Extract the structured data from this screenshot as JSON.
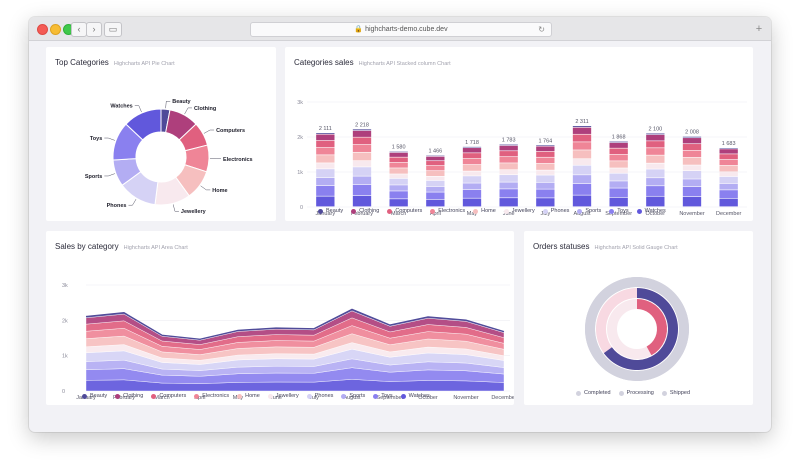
{
  "browser": {
    "url": "highcharts-demo.cube.dev"
  },
  "colors": [
    "#4f4a99",
    "#ae3f7c",
    "#e0607f",
    "#ef8597",
    "#f6bfbf",
    "#f8e9ee",
    "#d5d2f5",
    "#b3adf3",
    "#8a80ef",
    "#6158dc"
  ],
  "cards": {
    "pie": {
      "title": "Top Categories",
      "subtitle": "Highcharts API Pie Chart"
    },
    "column": {
      "title": "Categories sales",
      "subtitle": "Highcharts API Stacked column Chart"
    },
    "area": {
      "title": "Sales by category",
      "subtitle": "Highcharts API Area Chart"
    },
    "gauge": {
      "title": "Orders statuses",
      "subtitle": "Highcharts API Solid Gauge Chart"
    }
  },
  "chart_data": [
    {
      "type": "pie",
      "title": "Top Categories",
      "categories": [
        "Beauty",
        "Clothing",
        "Computers",
        "Electronics",
        "Home",
        "Jewellery",
        "Phones",
        "Sports",
        "Toys",
        "Watches"
      ],
      "values": [
        3,
        10,
        8,
        9,
        10,
        12,
        13,
        9,
        13,
        13
      ],
      "donut": true
    },
    {
      "type": "bar",
      "stacked": true,
      "title": "Categories sales",
      "categories": [
        "January",
        "February",
        "March",
        "April",
        "May",
        "June",
        "July",
        "August",
        "September",
        "October",
        "November",
        "December"
      ],
      "totals_labels": [
        "2 111",
        "2 218",
        "1 580",
        "1 466",
        "1 718",
        "1 783",
        "1 764",
        "2 311",
        "1 868",
        "2 100",
        "2 008",
        "1 683"
      ],
      "ylim": [
        0,
        3000
      ],
      "yticks": [
        "0",
        "1k",
        "2k",
        "3k"
      ],
      "legend": "bottom",
      "series": [
        {
          "name": "Beauty",
          "values": [
            40,
            42,
            30,
            28,
            33,
            34,
            34,
            44,
            36,
            40,
            38,
            32
          ]
        },
        {
          "name": "Clothing",
          "values": [
            180,
            190,
            135,
            125,
            147,
            152,
            150,
            197,
            160,
            179,
            171,
            143
          ]
        },
        {
          "name": "Computers",
          "values": [
            200,
            210,
            150,
            139,
            163,
            169,
            167,
            219,
            177,
            199,
            190,
            160
          ]
        },
        {
          "name": "Electronics",
          "values": [
            210,
            221,
            158,
            146,
            171,
            178,
            176,
            230,
            186,
            209,
            200,
            168
          ]
        },
        {
          "name": "Home",
          "values": [
            230,
            241,
            172,
            160,
            187,
            194,
            192,
            251,
            203,
            229,
            219,
            183
          ]
        },
        {
          "name": "Jewellery",
          "values": [
            170,
            178,
            127,
            118,
            138,
            143,
            142,
            186,
            150,
            169,
            161,
            135
          ]
        },
        {
          "name": "Phones",
          "values": [
            250,
            263,
            187,
            173,
            204,
            211,
            209,
            274,
            221,
            249,
            238,
            199
          ]
        },
        {
          "name": "Sports",
          "values": [
            230,
            241,
            172,
            160,
            187,
            194,
            192,
            251,
            203,
            229,
            219,
            183
          ]
        },
        {
          "name": "Toys",
          "values": [
            300,
            316,
            225,
            209,
            245,
            254,
            251,
            329,
            266,
            299,
            286,
            240
          ]
        },
        {
          "name": "Watches",
          "values": [
            301,
            316,
            224,
            208,
            243,
            254,
            251,
            330,
            266,
            298,
            286,
            240
          ]
        }
      ]
    },
    {
      "type": "area",
      "stacked": true,
      "title": "Sales by category",
      "categories": [
        "January",
        "February",
        "March",
        "April",
        "May",
        "June",
        "July",
        "August",
        "September",
        "October",
        "November",
        "December"
      ],
      "ylim": [
        0,
        3000
      ],
      "yticks": [
        "0",
        "1k",
        "2k",
        "3k"
      ],
      "legend": "bottom",
      "series": [
        {
          "name": "Beauty",
          "values": [
            40,
            42,
            30,
            28,
            33,
            34,
            34,
            44,
            36,
            40,
            38,
            32
          ]
        },
        {
          "name": "Clothing",
          "values": [
            180,
            190,
            135,
            125,
            147,
            152,
            150,
            197,
            160,
            179,
            171,
            143
          ]
        },
        {
          "name": "Computers",
          "values": [
            200,
            210,
            150,
            139,
            163,
            169,
            167,
            219,
            177,
            199,
            190,
            160
          ]
        },
        {
          "name": "Electronics",
          "values": [
            210,
            221,
            158,
            146,
            171,
            178,
            176,
            230,
            186,
            209,
            200,
            168
          ]
        },
        {
          "name": "Home",
          "values": [
            230,
            241,
            172,
            160,
            187,
            194,
            192,
            251,
            203,
            229,
            219,
            183
          ]
        },
        {
          "name": "Jewellery",
          "values": [
            170,
            178,
            127,
            118,
            138,
            143,
            142,
            186,
            150,
            169,
            161,
            135
          ]
        },
        {
          "name": "Phones",
          "values": [
            250,
            263,
            187,
            173,
            204,
            211,
            209,
            274,
            221,
            249,
            238,
            199
          ]
        },
        {
          "name": "Sports",
          "values": [
            230,
            241,
            172,
            160,
            187,
            194,
            192,
            251,
            203,
            229,
            219,
            183
          ]
        },
        {
          "name": "Toys",
          "values": [
            300,
            316,
            225,
            209,
            245,
            254,
            251,
            329,
            266,
            299,
            286,
            240
          ]
        },
        {
          "name": "Watches",
          "values": [
            301,
            316,
            224,
            208,
            243,
            254,
            251,
            330,
            266,
            298,
            286,
            240
          ]
        }
      ]
    },
    {
      "type": "gauge",
      "title": "Orders statuses",
      "legend": "bottom",
      "series": [
        {
          "name": "Completed",
          "value": 100,
          "color": "#d2d2de"
        },
        {
          "name": "Processing",
          "value": 65,
          "color": "#4f4a99"
        },
        {
          "name": "Shipped",
          "value": 42,
          "color": "#e0607f"
        }
      ]
    }
  ]
}
